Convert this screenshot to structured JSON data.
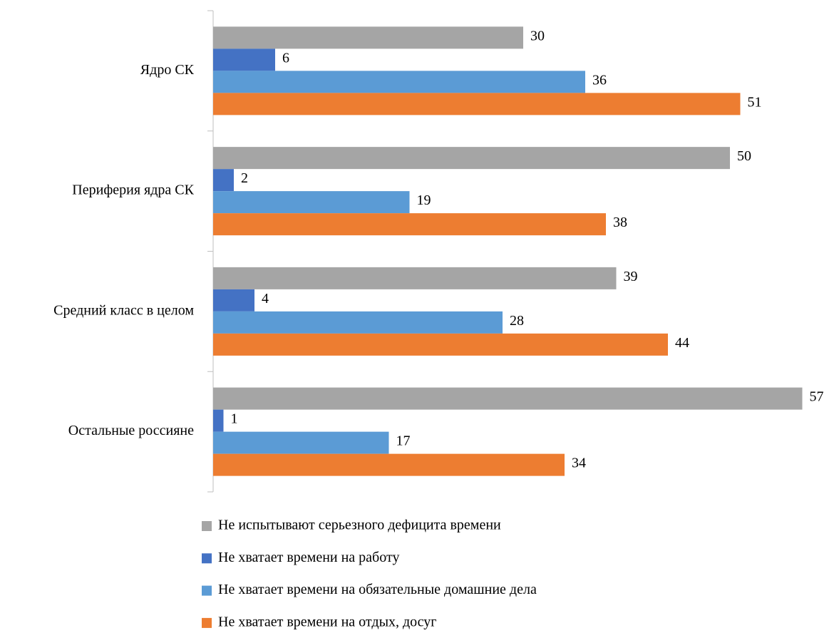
{
  "chart_data": {
    "type": "bar",
    "orientation": "horizontal",
    "categories": [
      "Ядро СК",
      "Периферия ядра СК",
      "Средний класс в целом",
      "Остальные россияне"
    ],
    "series": [
      {
        "name": "Не испытывают серьезного дефицита времени",
        "color": "#a5a5a5",
        "values": [
          30,
          50,
          39,
          57
        ]
      },
      {
        "name": "Не хватает времени на работу",
        "color": "#4472c4",
        "values": [
          6,
          2,
          4,
          1
        ]
      },
      {
        "name": "Не хватает времени на обязательные домашние дела",
        "color": "#5b9bd5",
        "values": [
          36,
          19,
          28,
          17
        ]
      },
      {
        "name": "Не хватает времени на отдых, досуг",
        "color": "#ed7d31",
        "values": [
          51,
          38,
          44,
          34
        ]
      }
    ],
    "legend": "bottom"
  }
}
